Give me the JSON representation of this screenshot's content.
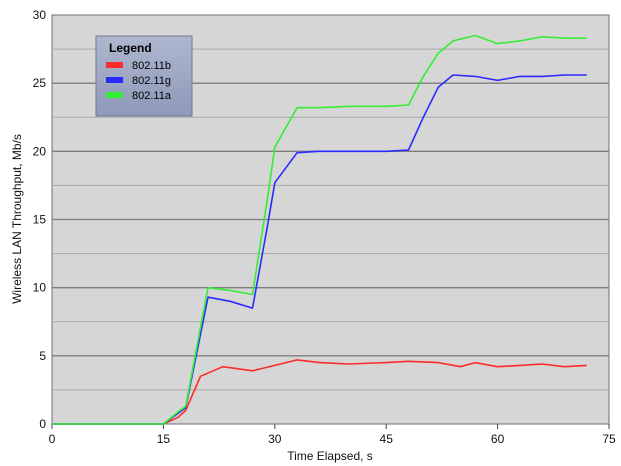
{
  "chart_data": {
    "type": "line",
    "xlabel": "Time Elapsed, s",
    "ylabel": "Wireless LAN Throughput, Mb/s",
    "xlim": [
      0,
      75
    ],
    "ylim": [
      0,
      30
    ],
    "xticks": [
      0,
      15,
      30,
      45,
      60,
      75
    ],
    "yticks": [
      0,
      5,
      10,
      15,
      20,
      25,
      30
    ],
    "grid": "horizontal",
    "legend": {
      "title": "Legend",
      "position": "top-left"
    },
    "series": [
      {
        "name": "802.11b",
        "color": "#ff2a2a",
        "x": [
          0,
          15,
          17,
          18,
          20,
          23,
          27,
          30,
          33,
          36,
          40,
          45,
          48,
          52,
          55,
          57,
          60,
          63,
          66,
          69,
          72
        ],
        "y": [
          0,
          0,
          0.5,
          1.0,
          3.5,
          4.2,
          3.9,
          4.3,
          4.7,
          4.5,
          4.4,
          4.5,
          4.6,
          4.5,
          4.2,
          4.5,
          4.2,
          4.3,
          4.4,
          4.2,
          4.3
        ]
      },
      {
        "name": "802.11g",
        "color": "#2a2aff",
        "x": [
          0,
          15,
          17,
          18,
          21,
          24,
          27,
          29,
          30,
          33,
          36,
          40,
          45,
          48,
          50,
          52,
          54,
          57,
          60,
          63,
          66,
          69,
          72
        ],
        "y": [
          0,
          0,
          0.8,
          1.2,
          9.3,
          9.0,
          8.5,
          14.5,
          17.7,
          19.9,
          20.0,
          20.0,
          20.0,
          20.1,
          22.5,
          24.7,
          25.6,
          25.5,
          25.2,
          25.5,
          25.5,
          25.6,
          25.6
        ]
      },
      {
        "name": "802.11a",
        "color": "#33ee33",
        "x": [
          0,
          15,
          17,
          18,
          21,
          24,
          27,
          29,
          30,
          33,
          36,
          40,
          45,
          48,
          50,
          52,
          54,
          57,
          60,
          63,
          66,
          69,
          72
        ],
        "y": [
          0,
          0,
          0.9,
          1.3,
          10.0,
          9.8,
          9.5,
          16.5,
          20.3,
          23.2,
          23.2,
          23.3,
          23.3,
          23.4,
          25.5,
          27.2,
          28.1,
          28.5,
          27.9,
          28.1,
          28.4,
          28.3,
          28.3
        ]
      }
    ]
  }
}
